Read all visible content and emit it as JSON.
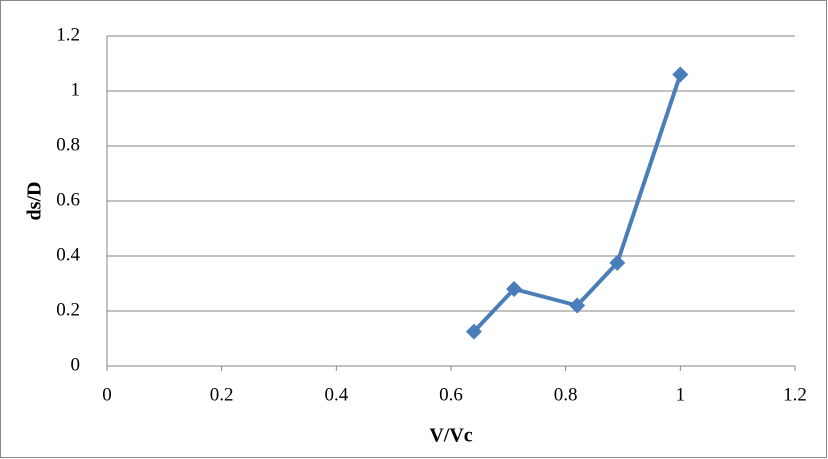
{
  "chart_data": {
    "type": "line",
    "x_label": "V/Vc",
    "y_label": "ds/D",
    "x": [
      0.64,
      0.71,
      0.82,
      0.89,
      1.0
    ],
    "series": [
      {
        "name": "ds/D",
        "color": "#4a7ebb",
        "values": [
          0.125,
          0.28,
          0.22,
          0.375,
          1.06
        ]
      }
    ],
    "xlim": [
      0,
      1.2
    ],
    "xticks": [
      0,
      0.2,
      0.4,
      0.6,
      0.8,
      1,
      1.2
    ],
    "ylim": [
      0,
      1.2
    ],
    "yticks": [
      0,
      0.2,
      0.4,
      0.6,
      0.8,
      1,
      1.2
    ],
    "grid": true
  }
}
